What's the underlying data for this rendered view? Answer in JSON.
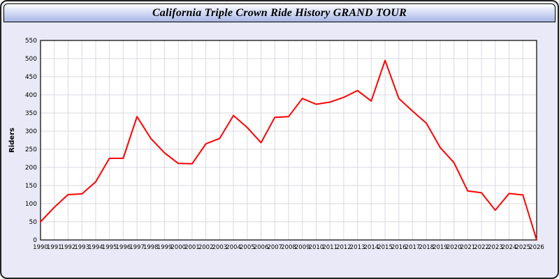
{
  "window": {
    "title": "California Triple Crown Ride History GRAND TOUR"
  },
  "chart_data": {
    "type": "line",
    "title": "California Triple Crown Ride History GRAND TOUR",
    "xlabel": "",
    "ylabel": "Riders",
    "x": [
      1990,
      1991,
      1992,
      1993,
      1994,
      1995,
      1996,
      1997,
      1998,
      1999,
      2000,
      2001,
      2002,
      2003,
      2004,
      2005,
      2006,
      2007,
      2008,
      2009,
      2010,
      2011,
      2012,
      2013,
      2014,
      2015,
      2016,
      2017,
      2018,
      2019,
      2020,
      2021,
      2022,
      2023,
      2024,
      2025,
      2026
    ],
    "series": [
      {
        "name": "Riders",
        "color": "#ff0000",
        "values": [
          50,
          90,
          125,
          127,
          160,
          225,
          225,
          340,
          280,
          240,
          211,
          210,
          265,
          280,
          343,
          310,
          268,
          338,
          340,
          390,
          374,
          380,
          393,
          412,
          383,
          495,
          390,
          355,
          322,
          255,
          213,
          135,
          130,
          82,
          128,
          124,
          0
        ]
      }
    ],
    "ylim": [
      0,
      550
    ],
    "ytick_step": 50,
    "grid": true,
    "legend": "none",
    "plot_bg": "#ffffff",
    "grid_color": "#d9d9e2",
    "axis_color": "#000000"
  }
}
